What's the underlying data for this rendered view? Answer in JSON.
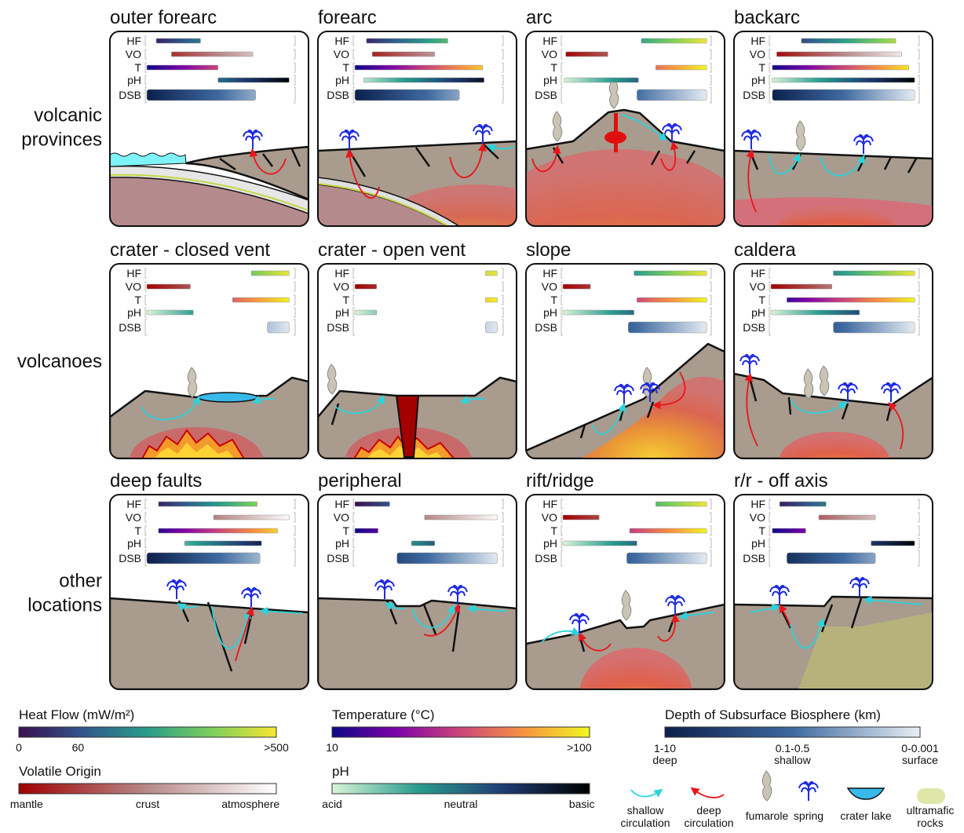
{
  "parameters": [
    "HF",
    "VO",
    "T",
    "pH",
    "DSB"
  ],
  "scales": [
    {
      "title": "Heat Flow (mW/m²)",
      "labels": [
        "0",
        "60",
        ">500"
      ],
      "colors": [
        "#3b0f4f",
        "#31578c",
        "#2a9d8a",
        "#7ccf5a",
        "#f7e733"
      ]
    },
    {
      "title": "Volatile Origin",
      "labels": [
        "mantle",
        "crust",
        "atmosphere"
      ],
      "colors": [
        "#a00000",
        "#b88a8a",
        "#ffffff"
      ]
    },
    {
      "title": "Temperature (°C)",
      "labels": [
        "10",
        ">100"
      ],
      "colors": [
        "#0d0887",
        "#7e03a8",
        "#cc4778",
        "#f89540",
        "#f0f921"
      ]
    },
    {
      "title": "pH",
      "labels": [
        "acid",
        "neutral",
        "basic"
      ],
      "colors": [
        "#d8f5d8",
        "#2a9d8f",
        "#1f3b73",
        "#000000"
      ]
    },
    {
      "title": "Depth of Subsurface Biosphere (km)",
      "labels": [
        [
          "1-10",
          "deep"
        ],
        [
          "0.1-0.5",
          "shallow"
        ],
        [
          "0-0.001",
          "surface"
        ]
      ],
      "colors": [
        "#0b1f4b",
        "#3e6aa0",
        "#e8eef5"
      ]
    }
  ],
  "rows": [
    [
      "volcanic",
      "provinces"
    ],
    [
      "volcanoes"
    ],
    [
      "other",
      "locations"
    ]
  ],
  "panels": [
    {
      "title": "outer forearc",
      "bars": [
        [
          6.5,
          37
        ],
        [
          17,
          73
        ],
        [
          0,
          49
        ],
        [
          49,
          98
        ],
        [
          0,
          75
        ]
      ]
    },
    {
      "title": "forearc",
      "bars": [
        [
          8,
          64
        ],
        [
          12,
          55
        ],
        [
          0,
          88
        ],
        [
          6,
          89
        ],
        [
          0,
          72
        ]
      ]
    },
    {
      "title": "arc",
      "bars": [
        [
          54,
          99
        ],
        [
          2,
          31
        ],
        [
          64,
          99
        ],
        [
          1,
          52
        ],
        [
          51,
          99
        ]
      ]
    },
    {
      "title": "backarc",
      "bars": [
        [
          21,
          86
        ],
        [
          4,
          90
        ],
        [
          1,
          95
        ],
        [
          1,
          99
        ],
        [
          1,
          99
        ]
      ]
    },
    {
      "title": "crater - closed vent",
      "bars": [
        [
          72,
          98
        ],
        [
          0,
          30
        ],
        [
          59,
          98
        ],
        [
          0,
          32
        ],
        [
          83,
          98
        ]
      ]
    },
    {
      "title": "crater - open vent",
      "bars": [
        [
          90,
          98
        ],
        [
          0,
          15
        ],
        [
          90,
          98
        ],
        [
          0,
          15
        ],
        [
          90,
          98
        ]
      ]
    },
    {
      "title": "slope",
      "bars": [
        [
          49,
          99
        ],
        [
          0,
          19
        ],
        [
          51,
          99
        ],
        [
          0,
          49
        ],
        [
          45,
          99
        ]
      ]
    },
    {
      "title": "caldera",
      "bars": [
        [
          43,
          99
        ],
        [
          0,
          42
        ],
        [
          11,
          99
        ],
        [
          0,
          61
        ],
        [
          43,
          99
        ]
      ]
    },
    {
      "title": "deep faults",
      "bars": [
        [
          8,
          76
        ],
        [
          46,
          98
        ],
        [
          8,
          90
        ],
        [
          26,
          79
        ],
        [
          0,
          78
        ]
      ]
    },
    {
      "title": "peripheral",
      "bars": [
        [
          0,
          24
        ],
        [
          48,
          98
        ],
        [
          0,
          16
        ],
        [
          39,
          55
        ],
        [
          29,
          98
        ]
      ]
    },
    {
      "title": "rift/ridge",
      "bars": [
        [
          64,
          99
        ],
        [
          0,
          25
        ],
        [
          46,
          99
        ],
        [
          0,
          51
        ],
        [
          44,
          99
        ]
      ]
    },
    {
      "title": "r/r - off axis",
      "bars": [
        [
          6,
          38
        ],
        [
          33,
          72
        ],
        [
          1,
          24
        ],
        [
          69,
          99
        ],
        [
          11,
          72
        ]
      ]
    }
  ],
  "icons": [
    [
      "shallow",
      "circulation"
    ],
    [
      "deep",
      "circulation"
    ],
    [
      "fumarole"
    ],
    [
      "spring"
    ],
    [
      "crater lake"
    ],
    [
      "ultramafic",
      "rocks"
    ]
  ]
}
